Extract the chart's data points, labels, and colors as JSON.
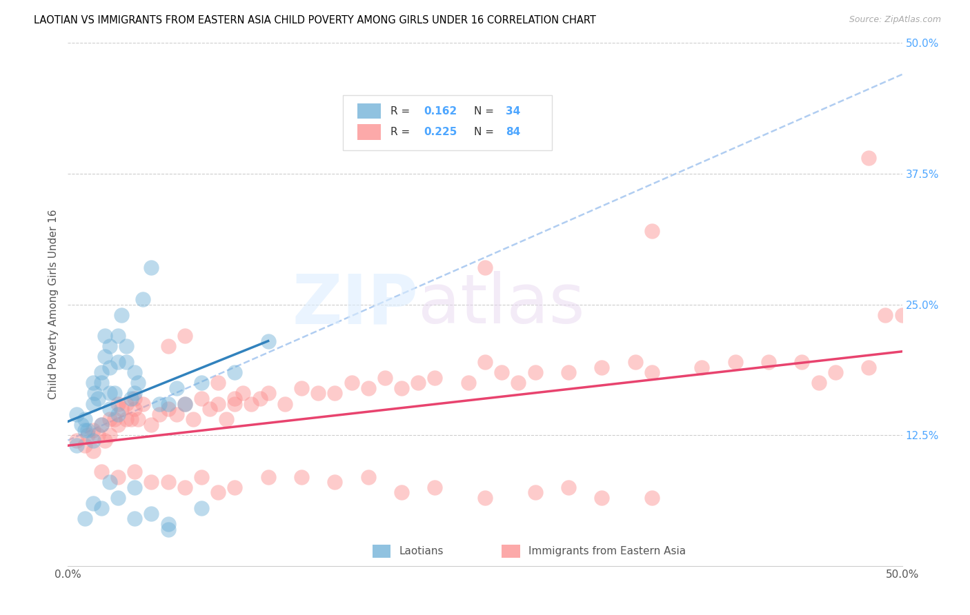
{
  "title": "LAOTIAN VS IMMIGRANTS FROM EASTERN ASIA CHILD POVERTY AMONG GIRLS UNDER 16 CORRELATION CHART",
  "source": "Source: ZipAtlas.com",
  "ylabel": "Child Poverty Among Girls Under 16",
  "xlim": [
    0.0,
    0.5
  ],
  "ylim": [
    0.0,
    0.5
  ],
  "ytick_labels_right": [
    "50.0%",
    "37.5%",
    "25.0%",
    "12.5%",
    ""
  ],
  "ytick_positions_right": [
    0.5,
    0.375,
    0.25,
    0.125,
    0.0
  ],
  "blue_color": "#6baed6",
  "pink_color": "#fc8d8d",
  "blue_line_color": "#3182bd",
  "pink_line_color": "#e8436e",
  "dash_line_color": "#a8c8f0",
  "laotian_scatter_x": [
    0.005,
    0.008,
    0.01,
    0.012,
    0.015,
    0.015,
    0.016,
    0.018,
    0.02,
    0.02,
    0.022,
    0.022,
    0.025,
    0.025,
    0.025,
    0.028,
    0.03,
    0.03,
    0.032,
    0.035,
    0.035,
    0.038,
    0.04,
    0.04,
    0.042,
    0.045,
    0.05,
    0.055,
    0.06,
    0.065,
    0.07,
    0.08,
    0.1,
    0.12
  ],
  "laotian_scatter_y": [
    0.145,
    0.135,
    0.14,
    0.13,
    0.155,
    0.175,
    0.165,
    0.16,
    0.175,
    0.185,
    0.2,
    0.22,
    0.165,
    0.19,
    0.21,
    0.165,
    0.195,
    0.22,
    0.24,
    0.195,
    0.21,
    0.16,
    0.165,
    0.185,
    0.175,
    0.255,
    0.285,
    0.155,
    0.155,
    0.17,
    0.155,
    0.175,
    0.185,
    0.215
  ],
  "laotian_scatter_x2": [
    0.01,
    0.015,
    0.02,
    0.025,
    0.03,
    0.04,
    0.05,
    0.06,
    0.005,
    0.01,
    0.015,
    0.02,
    0.025,
    0.03,
    0.04,
    0.06,
    0.08
  ],
  "laotian_scatter_y2": [
    0.045,
    0.06,
    0.055,
    0.08,
    0.065,
    0.075,
    0.05,
    0.035,
    0.115,
    0.13,
    0.12,
    0.135,
    0.15,
    0.145,
    0.045,
    0.04,
    0.055
  ],
  "eastern_asia_scatter_x": [
    0.005,
    0.01,
    0.012,
    0.015,
    0.015,
    0.018,
    0.02,
    0.022,
    0.025,
    0.025,
    0.028,
    0.03,
    0.032,
    0.035,
    0.035,
    0.038,
    0.04,
    0.04,
    0.042,
    0.045,
    0.05,
    0.055,
    0.06,
    0.065,
    0.07,
    0.075,
    0.08,
    0.085,
    0.09,
    0.095,
    0.1,
    0.1,
    0.105,
    0.11,
    0.115,
    0.12,
    0.13,
    0.14,
    0.15,
    0.16,
    0.17,
    0.18,
    0.19,
    0.2,
    0.21,
    0.22,
    0.24,
    0.25,
    0.26,
    0.27,
    0.28,
    0.3,
    0.32,
    0.34,
    0.35,
    0.38,
    0.4,
    0.42,
    0.44,
    0.45,
    0.46,
    0.48,
    0.49,
    0.5
  ],
  "eastern_asia_scatter_y": [
    0.12,
    0.115,
    0.125,
    0.11,
    0.13,
    0.125,
    0.135,
    0.12,
    0.125,
    0.14,
    0.14,
    0.135,
    0.15,
    0.14,
    0.155,
    0.14,
    0.15,
    0.16,
    0.14,
    0.155,
    0.135,
    0.145,
    0.15,
    0.145,
    0.155,
    0.14,
    0.16,
    0.15,
    0.155,
    0.14,
    0.16,
    0.155,
    0.165,
    0.155,
    0.16,
    0.165,
    0.155,
    0.17,
    0.165,
    0.165,
    0.175,
    0.17,
    0.18,
    0.17,
    0.175,
    0.18,
    0.175,
    0.195,
    0.185,
    0.175,
    0.185,
    0.185,
    0.19,
    0.195,
    0.185,
    0.19,
    0.195,
    0.195,
    0.195,
    0.175,
    0.185,
    0.19,
    0.24,
    0.24
  ],
  "eastern_asia_outliers_x": [
    0.03,
    0.06,
    0.07,
    0.09,
    0.25,
    0.35,
    0.48
  ],
  "eastern_asia_outliers_y": [
    0.155,
    0.21,
    0.22,
    0.175,
    0.285,
    0.32,
    0.39
  ],
  "eastern_asia_low_x": [
    0.02,
    0.03,
    0.04,
    0.05,
    0.06,
    0.07,
    0.08,
    0.09,
    0.1,
    0.12,
    0.14,
    0.16,
    0.18,
    0.2,
    0.22,
    0.25,
    0.28,
    0.3,
    0.32,
    0.35
  ],
  "eastern_asia_low_y": [
    0.09,
    0.085,
    0.09,
    0.08,
    0.08,
    0.075,
    0.085,
    0.07,
    0.075,
    0.085,
    0.085,
    0.08,
    0.085,
    0.07,
    0.075,
    0.065,
    0.07,
    0.075,
    0.065,
    0.065
  ],
  "blue_line_x": [
    0.0,
    0.12
  ],
  "blue_line_y": [
    0.138,
    0.215
  ],
  "pink_line_x": [
    0.0,
    0.5
  ],
  "pink_line_y": [
    0.115,
    0.205
  ],
  "dash_line_x": [
    0.0,
    0.5
  ],
  "dash_line_y": [
    0.12,
    0.47
  ]
}
